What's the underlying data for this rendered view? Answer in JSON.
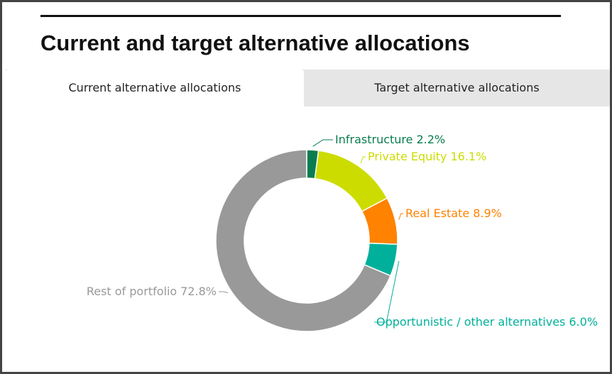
{
  "header": {
    "title": "Current and target alternative allocations"
  },
  "tabs": [
    "Current alternative allocations",
    "Target alternative allocations"
  ],
  "chart_data": {
    "type": "donut",
    "categories": [
      "Infrastructure",
      "Private Equity",
      "Real Estate",
      "Opportunistic / other alternatives",
      "Rest of portfolio"
    ],
    "values": [
      2.2,
      16.1,
      8.9,
      6.0,
      72.8
    ],
    "value_labels": [
      "2.2%",
      "16.1%",
      "8.9%",
      "6.0%",
      "72.8%"
    ],
    "colors": [
      "#0a7d50",
      "#cddc00",
      "#ff8200",
      "#00b09b",
      "#999999"
    ]
  }
}
